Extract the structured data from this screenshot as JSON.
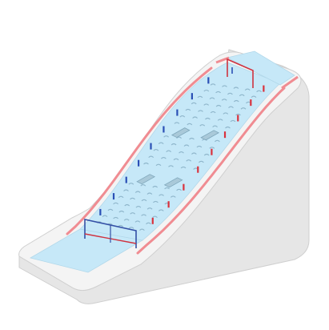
{
  "colors": {
    "background": "#ffffff",
    "outline": "#cfcfcf",
    "ground_top": "#f4f4f4",
    "ground_side": "#e6e6e6",
    "slope_ice": "#c6e8f8",
    "mogul_mark": "#8fb6cb",
    "safety_rail": "#f08c92",
    "gate_red": "#d9323d",
    "gate_blue": "#2a4fb5",
    "frame_red": "#cf3340",
    "frame_blue": "#3450a6",
    "jump_kicker": "#a9c9d9"
  },
  "icons": {
    "course": "mogul-ski-course-icon",
    "start_gate": "start-gate-icon",
    "finish_gate": "finish-gate-icon",
    "air_jump": "air-jump-icon"
  },
  "course": {
    "gate_pairs_per_side": 9,
    "air_jumps": 2,
    "mogul_rows": 22
  }
}
